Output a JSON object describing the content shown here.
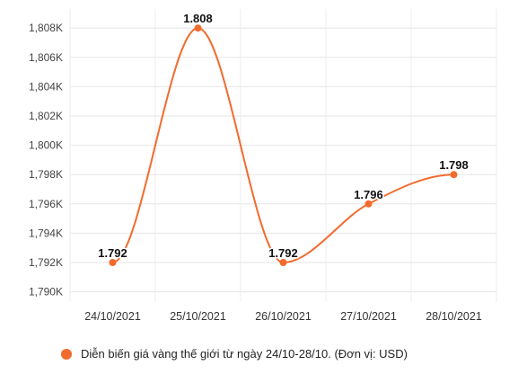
{
  "chart_data": {
    "type": "line",
    "categories": [
      "24/10/2021",
      "25/10/2021",
      "26/10/2021",
      "27/10/2021",
      "28/10/2021"
    ],
    "series": [
      {
        "name": "Diễn biến giá vàng thế giới từ ngày 24/10-28/10. (Đơn vị: USD)",
        "values": [
          1792,
          1808,
          1792,
          1796,
          1798
        ],
        "data_labels": [
          "1.792",
          "1.808",
          "1.792",
          "1.796",
          "1.798"
        ],
        "color": "#f26b2e"
      }
    ],
    "y_ticks": [
      1790,
      1792,
      1794,
      1796,
      1798,
      1800,
      1802,
      1804,
      1806,
      1808
    ],
    "y_tick_labels": [
      "1,790K",
      "1,792K",
      "1,794K",
      "1,796K",
      "1,798K",
      "1,800K",
      "1,802K",
      "1,804K",
      "1,806K",
      "1,808K"
    ],
    "ylim": [
      1789.3,
      1809.3
    ],
    "grid": true,
    "legend_position": "bottom",
    "title": "",
    "xlabel": "",
    "ylabel": ""
  }
}
